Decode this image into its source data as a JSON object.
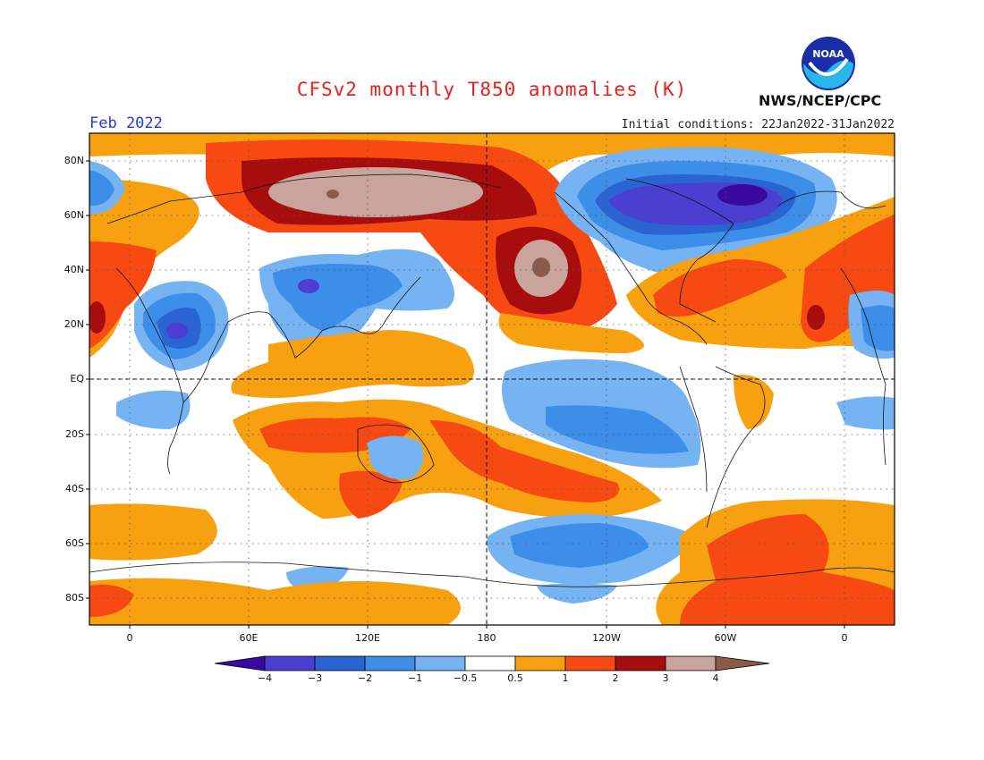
{
  "title": "CFSv2 monthly T850 anomalies (K)",
  "month": "Feb 2022",
  "initial_conditions": "Initial conditions: 22Jan2022-31Jan2022",
  "agency": "NWS/NCEP/CPC",
  "logo": "NOAA",
  "colors": {
    "lt_m4": "#3a0aa0",
    "m4_m3": "#4a3fd0",
    "m3_m2": "#2a64d2",
    "m2_m1": "#3c8ee8",
    "m1_m05": "#76b3f2",
    "neutral": "#ffffff",
    "p05_p1": "#f7a010",
    "p1_p2": "#f64a12",
    "p2_p3": "#a80d0d",
    "p3_p4": "#c8a49c",
    "gt_p4": "#8a5a4a"
  },
  "lat_labels": [
    "80N",
    "60N",
    "40N",
    "20N",
    "EQ",
    "20S",
    "40S",
    "60S",
    "80S"
  ],
  "lon_labels": [
    "0",
    "60E",
    "120E",
    "180",
    "120W",
    "60W",
    "0"
  ],
  "colorbar_labels": [
    "−4",
    "−3",
    "−2",
    "−1",
    "−0.5",
    "0.5",
    "1",
    "2",
    "3",
    "4"
  ]
}
